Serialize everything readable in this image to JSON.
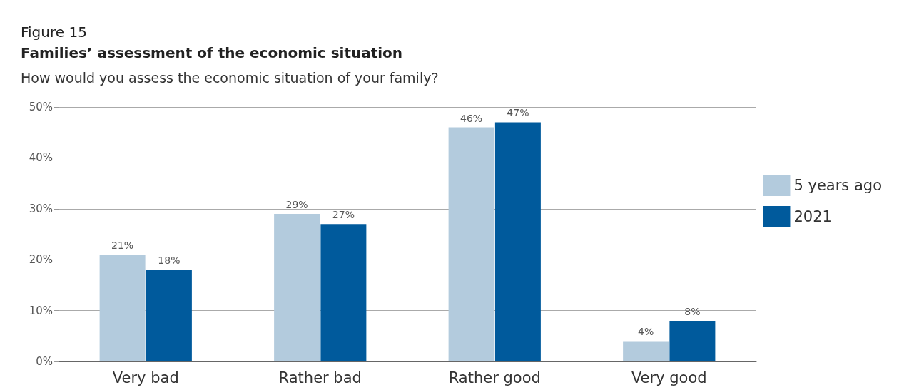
{
  "chart_data": {
    "type": "bar",
    "title": "Families’ assessment of the economic situation",
    "subtitle": "How would you assess the economic situation of your family?",
    "annotations": [
      "Figure 15"
    ],
    "categories": [
      "Very bad",
      "Rather bad",
      "Rather good",
      "Very good"
    ],
    "series": [
      {
        "name": "5 years ago",
        "color": "#b3cbdd",
        "values": [
          21,
          29,
          46,
          4
        ],
        "value_labels": [
          "21%",
          "29%",
          "46%",
          "4%"
        ]
      },
      {
        "name": "2021",
        "color": "#005a9c",
        "values": [
          18,
          27,
          47,
          8
        ],
        "value_labels": [
          "18%",
          "27%",
          "47%",
          "8%"
        ]
      }
    ],
    "ylim": [
      0,
      50
    ],
    "yticks": [
      {
        "value": 0,
        "label": "0%"
      },
      {
        "value": 10,
        "label": "10%"
      },
      {
        "value": 20,
        "label": "20%"
      },
      {
        "value": 30,
        "label": "30%"
      },
      {
        "value": 40,
        "label": "40%"
      },
      {
        "value": 50,
        "label": "50%"
      }
    ],
    "grid": "y",
    "legend": "right"
  }
}
